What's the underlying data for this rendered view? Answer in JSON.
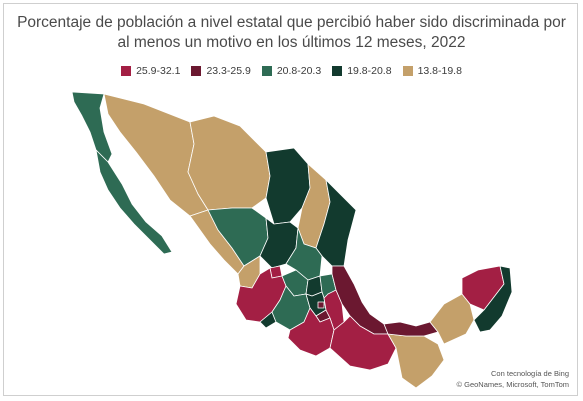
{
  "title": "Porcentaje de población a nivel estatal que percibió haber sido discriminada por al menos un motivo en los últimos 12 meses, 2022",
  "legend": [
    {
      "label": "25.9-32.1",
      "color": "#a31f44"
    },
    {
      "label": "23.3-25.9",
      "color": "#6b1830"
    },
    {
      "label": "20.8-20.3",
      "color": "#2e6b54"
    },
    {
      "label": "19.8-20.8",
      "color": "#123a2e"
    },
    {
      "label": "13.8-19.8",
      "color": "#c4a06a"
    }
  ],
  "credits": {
    "line1": "Con tecnología de Bing",
    "line2": "© GeoNames, Microsoft, TomTom"
  }
}
